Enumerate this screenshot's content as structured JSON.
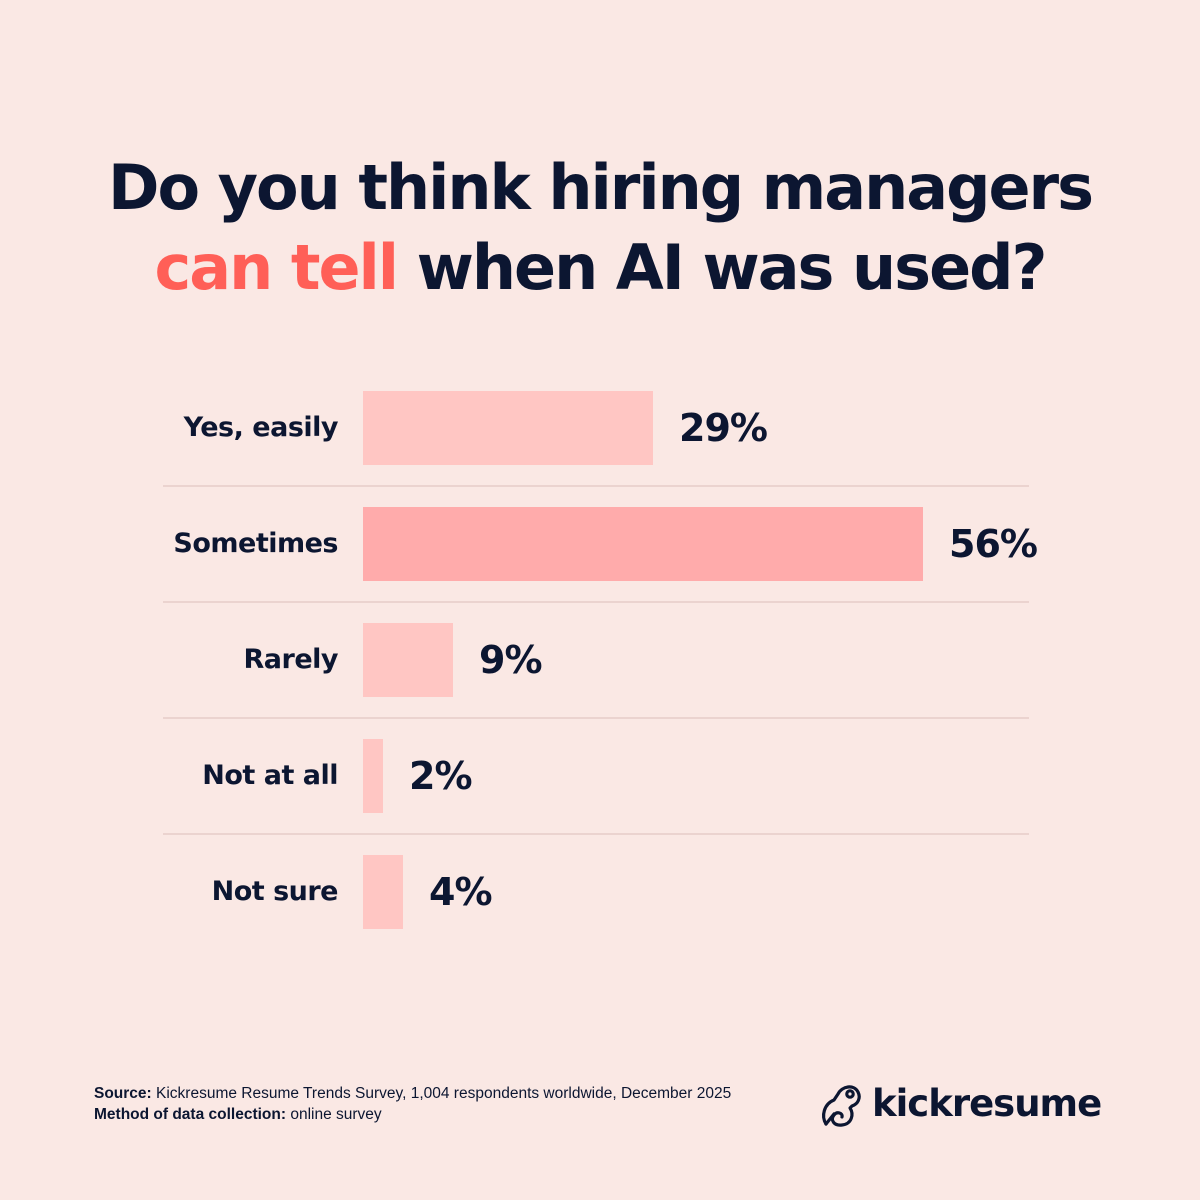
{
  "title": {
    "line1": "Do you think hiring managers",
    "accent": "can tell",
    "line2_rest": " when AI was used?"
  },
  "colors": {
    "background": "#fae8e4",
    "text": "#0c1631",
    "accent": "#ff5f57",
    "bar": "#ffc6c3",
    "bar_highlight": "#ffabab",
    "divider": "#ebd3cf"
  },
  "rows": [
    {
      "label": "Yes, easily",
      "value": 29,
      "display": "29%",
      "highlight": false
    },
    {
      "label": "Sometimes",
      "value": 56,
      "display": "56%",
      "highlight": true
    },
    {
      "label": "Rarely",
      "value": 9,
      "display": "9%",
      "highlight": false
    },
    {
      "label": "Not at all",
      "value": 2,
      "display": "2%",
      "highlight": false
    },
    {
      "label": "Not sure",
      "value": 4,
      "display": "4%",
      "highlight": false
    }
  ],
  "footer": {
    "source_label": "Source:",
    "source_text": " Kickresume Resume Trends Survey, 1,004 respondents worldwide, December 2025",
    "method_label": "Method of data collection:",
    "method_text": " online survey"
  },
  "logo": {
    "icon": "chameleon-icon",
    "wordmark": "kickresume"
  },
  "chart_data": {
    "type": "bar",
    "orientation": "horizontal",
    "title": "Do you think hiring managers can tell when AI was used?",
    "categories": [
      "Yes, easily",
      "Sometimes",
      "Rarely",
      "Not at all",
      "Not sure"
    ],
    "values": [
      29,
      56,
      9,
      2,
      4
    ],
    "unit": "%",
    "xlabel": "",
    "ylabel": "",
    "xlim": [
      0,
      100
    ],
    "grid": false,
    "legend": "none",
    "data_labels": [
      "29%",
      "56%",
      "9%",
      "2%",
      "4%"
    ],
    "highlighted_category": "Sometimes",
    "source": "Kickresume Resume Trends Survey, 1,004 respondents worldwide, December 2025",
    "method": "online survey"
  }
}
